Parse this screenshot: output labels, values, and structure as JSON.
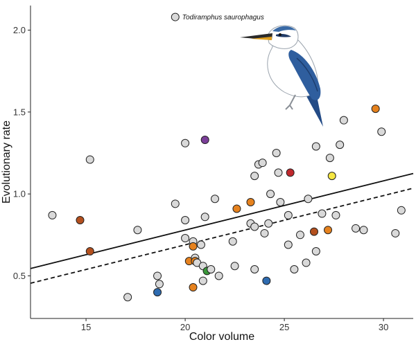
{
  "chart_data": {
    "type": "scatter",
    "title": "",
    "xlabel": "Color volume",
    "ylabel": "Evolutionary rate",
    "xlim": [
      12.2,
      31.5
    ],
    "ylim": [
      0.24,
      2.15
    ],
    "x_ticks": [
      15,
      20,
      25,
      30
    ],
    "y_ticks": [
      0.5,
      1.0,
      1.5,
      2.0
    ],
    "x_tick_labels": [
      "15",
      "20",
      "25",
      "30"
    ],
    "y_tick_labels": [
      "0.5",
      "1.0",
      "1.5",
      "2.0"
    ],
    "grid": false,
    "annotation": {
      "text": "Todiramphus saurophagus",
      "x": 25.0,
      "y": 2.08,
      "marker": {
        "x": 19.5,
        "y": 2.08,
        "color": "#d9d9d9"
      }
    },
    "illustration": "kingfisher-bird",
    "lines": [
      {
        "style": "solid",
        "x": [
          12.2,
          31.5
        ],
        "y": [
          0.545,
          1.125
        ],
        "color": "#111111"
      },
      {
        "style": "dashed",
        "x": [
          12.2,
          31.5
        ],
        "y": [
          0.455,
          1.035
        ],
        "color": "#111111"
      }
    ],
    "points": [
      {
        "x": 13.3,
        "y": 0.87,
        "color": "#d9d9d9"
      },
      {
        "x": 14.7,
        "y": 0.84,
        "color": "#b4501e"
      },
      {
        "x": 15.2,
        "y": 1.21,
        "color": "#d9d9d9"
      },
      {
        "x": 15.2,
        "y": 0.65,
        "color": "#b4501e"
      },
      {
        "x": 17.1,
        "y": 0.37,
        "color": "#d9d9d9"
      },
      {
        "x": 17.6,
        "y": 0.78,
        "color": "#d9d9d9"
      },
      {
        "x": 18.6,
        "y": 0.5,
        "color": "#d9d9d9"
      },
      {
        "x": 18.7,
        "y": 0.45,
        "color": "#d9d9d9"
      },
      {
        "x": 18.6,
        "y": 0.4,
        "color": "#2e6bb0"
      },
      {
        "x": 19.5,
        "y": 0.94,
        "color": "#d9d9d9"
      },
      {
        "x": 20.0,
        "y": 1.31,
        "color": "#d9d9d9"
      },
      {
        "x": 20.0,
        "y": 0.84,
        "color": "#d9d9d9"
      },
      {
        "x": 20.0,
        "y": 0.73,
        "color": "#d9d9d9"
      },
      {
        "x": 20.2,
        "y": 0.59,
        "color": "#e6821e"
      },
      {
        "x": 20.4,
        "y": 0.71,
        "color": "#d9d9d9"
      },
      {
        "x": 20.4,
        "y": 0.68,
        "color": "#e6821e"
      },
      {
        "x": 20.5,
        "y": 0.61,
        "color": "#d9d9d9"
      },
      {
        "x": 20.5,
        "y": 0.59,
        "color": "#e6821e"
      },
      {
        "x": 20.6,
        "y": 0.58,
        "color": "#d9d9d9"
      },
      {
        "x": 20.4,
        "y": 0.43,
        "color": "#e6821e"
      },
      {
        "x": 20.8,
        "y": 0.69,
        "color": "#d9d9d9"
      },
      {
        "x": 20.9,
        "y": 0.56,
        "color": "#d9d9d9"
      },
      {
        "x": 20.9,
        "y": 0.47,
        "color": "#d9d9d9"
      },
      {
        "x": 21.0,
        "y": 1.33,
        "color": "#7b3f99"
      },
      {
        "x": 21.0,
        "y": 0.86,
        "color": "#d9d9d9"
      },
      {
        "x": 21.1,
        "y": 0.53,
        "color": "#3a9a3a"
      },
      {
        "x": 21.3,
        "y": 0.54,
        "color": "#d9d9d9"
      },
      {
        "x": 21.5,
        "y": 0.97,
        "color": "#d9d9d9"
      },
      {
        "x": 21.7,
        "y": 0.5,
        "color": "#d9d9d9"
      },
      {
        "x": 22.4,
        "y": 0.71,
        "color": "#d9d9d9"
      },
      {
        "x": 22.5,
        "y": 0.56,
        "color": "#d9d9d9"
      },
      {
        "x": 22.6,
        "y": 0.91,
        "color": "#e6821e"
      },
      {
        "x": 23.3,
        "y": 0.95,
        "color": "#e6821e"
      },
      {
        "x": 23.3,
        "y": 0.82,
        "color": "#d9d9d9"
      },
      {
        "x": 23.5,
        "y": 1.11,
        "color": "#d9d9d9"
      },
      {
        "x": 23.5,
        "y": 0.8,
        "color": "#d9d9d9"
      },
      {
        "x": 23.5,
        "y": 0.54,
        "color": "#d9d9d9"
      },
      {
        "x": 23.7,
        "y": 1.18,
        "color": "#d9d9d9"
      },
      {
        "x": 23.9,
        "y": 1.19,
        "color": "#d9d9d9"
      },
      {
        "x": 24.0,
        "y": 0.76,
        "color": "#d9d9d9"
      },
      {
        "x": 24.1,
        "y": 0.47,
        "color": "#2e6bb0"
      },
      {
        "x": 24.2,
        "y": 0.82,
        "color": "#d9d9d9"
      },
      {
        "x": 24.3,
        "y": 1.0,
        "color": "#d9d9d9"
      },
      {
        "x": 24.6,
        "y": 1.25,
        "color": "#d9d9d9"
      },
      {
        "x": 24.7,
        "y": 1.13,
        "color": "#d9d9d9"
      },
      {
        "x": 24.8,
        "y": 0.95,
        "color": "#d9d9d9"
      },
      {
        "x": 25.2,
        "y": 0.87,
        "color": "#d9d9d9"
      },
      {
        "x": 25.2,
        "y": 0.69,
        "color": "#d9d9d9"
      },
      {
        "x": 25.3,
        "y": 1.13,
        "color": "#c0282d"
      },
      {
        "x": 25.5,
        "y": 0.54,
        "color": "#d9d9d9"
      },
      {
        "x": 25.8,
        "y": 0.75,
        "color": "#d9d9d9"
      },
      {
        "x": 26.1,
        "y": 0.58,
        "color": "#d9d9d9"
      },
      {
        "x": 26.2,
        "y": 0.97,
        "color": "#d9d9d9"
      },
      {
        "x": 26.5,
        "y": 0.77,
        "color": "#b4501e"
      },
      {
        "x": 26.6,
        "y": 0.65,
        "color": "#d9d9d9"
      },
      {
        "x": 26.6,
        "y": 1.29,
        "color": "#d9d9d9"
      },
      {
        "x": 26.9,
        "y": 0.88,
        "color": "#d9d9d9"
      },
      {
        "x": 27.2,
        "y": 0.78,
        "color": "#e6821e"
      },
      {
        "x": 27.3,
        "y": 1.22,
        "color": "#d9d9d9"
      },
      {
        "x": 27.4,
        "y": 1.11,
        "color": "#f5e642"
      },
      {
        "x": 27.6,
        "y": 0.87,
        "color": "#d9d9d9"
      },
      {
        "x": 27.8,
        "y": 1.3,
        "color": "#d9d9d9"
      },
      {
        "x": 28.0,
        "y": 1.45,
        "color": "#d9d9d9"
      },
      {
        "x": 28.6,
        "y": 0.79,
        "color": "#d9d9d9"
      },
      {
        "x": 29.0,
        "y": 0.78,
        "color": "#d9d9d9"
      },
      {
        "x": 29.6,
        "y": 1.52,
        "color": "#e6821e"
      },
      {
        "x": 29.9,
        "y": 1.38,
        "color": "#d9d9d9"
      },
      {
        "x": 30.6,
        "y": 0.76,
        "color": "#d9d9d9"
      },
      {
        "x": 30.9,
        "y": 0.9,
        "color": "#d9d9d9"
      }
    ]
  }
}
